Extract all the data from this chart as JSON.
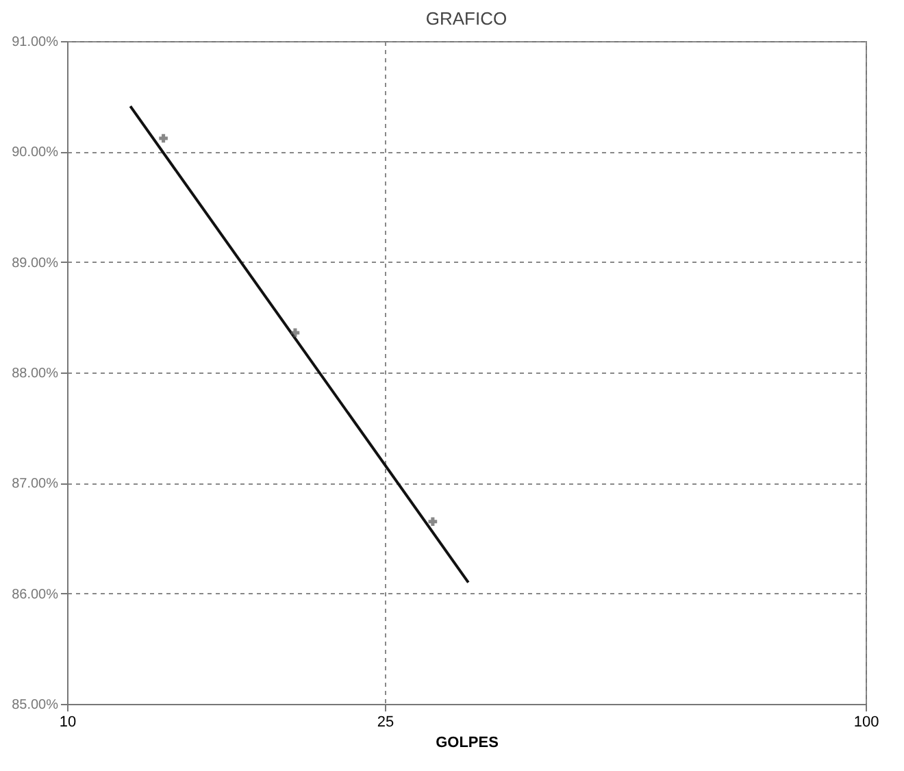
{
  "chart_data": {
    "type": "line",
    "title": "GRAFICO",
    "xlabel": "GOLPES",
    "log": "x",
    "grid": true,
    "xlim": [
      10,
      100
    ],
    "xticks": [
      10,
      25,
      100
    ],
    "ylim": [
      85,
      91
    ],
    "yticks": [
      {
        "value": 85,
        "label": "85.00%"
      },
      {
        "value": 86,
        "label": "86.00%"
      },
      {
        "value": 87,
        "label": "87.00%"
      },
      {
        "value": 88,
        "label": "88.00%"
      },
      {
        "value": 89,
        "label": "89.00%"
      },
      {
        "value": 90,
        "label": "90.00%"
      },
      {
        "value": 91,
        "label": "91.00%"
      }
    ],
    "series": [
      {
        "type": "line",
        "color": "#111111",
        "x": [
          12.0,
          31.8
        ],
        "values": [
          90.41,
          86.1
        ],
        "marker": "none",
        "line_style": "solid"
      },
      {
        "type": "scatter",
        "color": "#555555",
        "x": [
          13.2,
          19.3,
          28.7
        ],
        "values": [
          90.12,
          88.36,
          86.65
        ],
        "marker": "cross"
      }
    ]
  }
}
